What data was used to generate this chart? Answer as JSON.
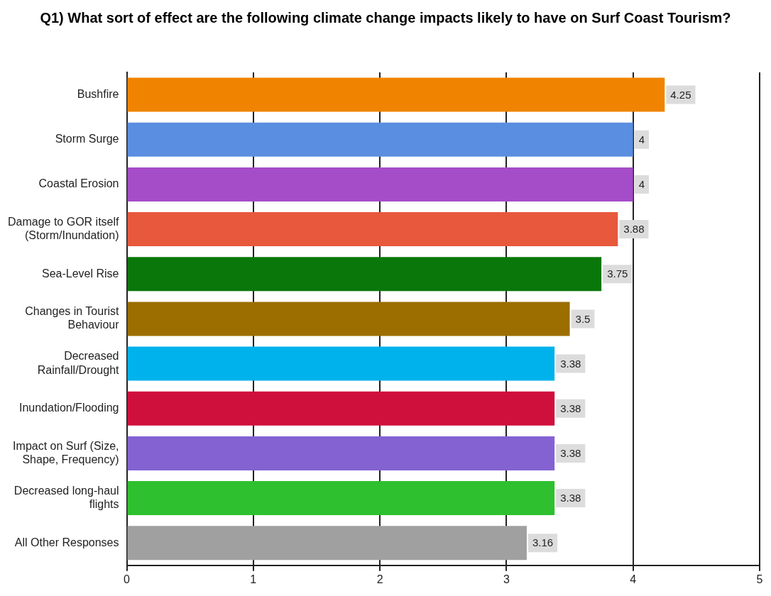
{
  "chart_data": {
    "type": "bar",
    "orientation": "horizontal",
    "title": "Q1) What sort of effect are the following climate change impacts likely to have on Surf Coast Tourism?",
    "categories": [
      "Bushfire",
      "Storm Surge",
      "Coastal Erosion",
      "Damage to GOR itself (Storm/Inundation)",
      "Sea-Level Rise",
      "Changes in Tourist Behaviour",
      "Decreased Rainfall/Drought",
      "Inundation/Flooding",
      "Impact on Surf (Size, Shape, Frequency)",
      "Decreased long-haul flights",
      "All Other Responses"
    ],
    "values": [
      4.25,
      4,
      4,
      3.88,
      3.75,
      3.5,
      3.38,
      3.38,
      3.38,
      3.38,
      3.16
    ],
    "colors": [
      "#f08400",
      "#5a8ee0",
      "#a54cc8",
      "#e8583c",
      "#0a770a",
      "#9c6e00",
      "#00b2ec",
      "#d0103c",
      "#8462d2",
      "#2ec02e",
      "#a0a0a0"
    ],
    "xlim": [
      0,
      5
    ],
    "xticks": [
      0,
      1,
      2,
      3,
      4,
      5
    ],
    "grid": "x",
    "data_labels": true,
    "legend": false
  }
}
